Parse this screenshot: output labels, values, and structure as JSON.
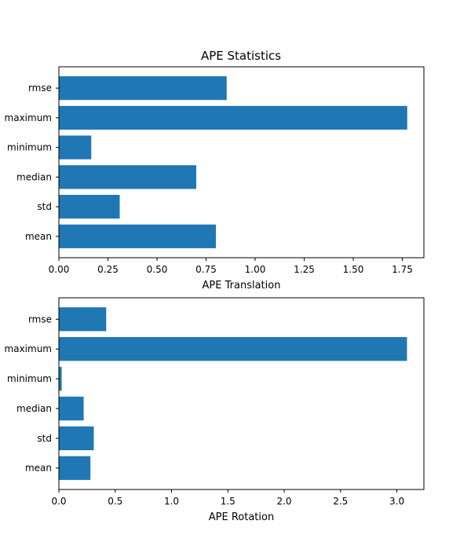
{
  "figure_title": "APE Statistics",
  "colors": {
    "bar": "#1f77b4",
    "axes": "#000000",
    "background": "#ffffff"
  },
  "chart_data": [
    {
      "type": "bar",
      "orientation": "horizontal",
      "categories": [
        "mean",
        "std",
        "median",
        "minimum",
        "maximum",
        "rmse"
      ],
      "values": [
        0.8,
        0.31,
        0.7,
        0.165,
        1.775,
        0.855
      ],
      "xlabel": "APE Translation",
      "xlim": [
        0,
        1.86
      ],
      "xticks": [
        "0.00",
        "0.25",
        "0.50",
        "0.75",
        "1.00",
        "1.25",
        "1.50",
        "1.75"
      ],
      "xtick_values": [
        0,
        0.25,
        0.5,
        0.75,
        1.0,
        1.25,
        1.5,
        1.75
      ],
      "grid": false
    },
    {
      "type": "bar",
      "orientation": "horizontal",
      "categories": [
        "mean",
        "std",
        "median",
        "minimum",
        "maximum",
        "rmse"
      ],
      "values": [
        0.28,
        0.31,
        0.22,
        0.025,
        3.09,
        0.42
      ],
      "xlabel": "APE Rotation",
      "xlim": [
        0,
        3.24
      ],
      "xticks": [
        "0.0",
        "0.5",
        "1.0",
        "1.5",
        "2.0",
        "2.5",
        "3.0"
      ],
      "xtick_values": [
        0,
        0.5,
        1.0,
        1.5,
        2.0,
        2.5,
        3.0
      ],
      "grid": false
    }
  ]
}
